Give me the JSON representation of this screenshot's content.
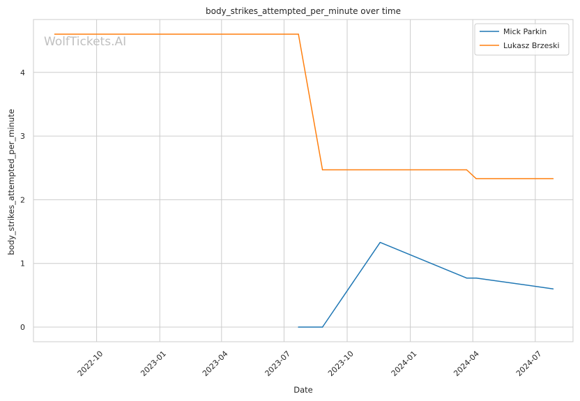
{
  "chart_data": {
    "type": "line",
    "title": "body_strikes_attempted_per_minute over time",
    "xlabel": "Date",
    "ylabel": "body_strikes_attempted_per_minute",
    "watermark": "WolfTickets.AI",
    "x_ticks": [
      "2022-10",
      "2023-01",
      "2023-04",
      "2023-07",
      "2023-10",
      "2024-01",
      "2024-04",
      "2024-07"
    ],
    "y_ticks": [
      0,
      1,
      2,
      3,
      4
    ],
    "xlim": [
      "2022-07-01",
      "2024-08-25"
    ],
    "ylim": [
      -0.23,
      4.83
    ],
    "grid": true,
    "legend_position": "top-right",
    "series": [
      {
        "name": "Mick Parkin",
        "color": "#1f77b4",
        "points": [
          {
            "x": "2023-07-22",
            "y": 0
          },
          {
            "x": "2023-08-26",
            "y": 0
          },
          {
            "x": "2023-11-18",
            "y": 1.33
          },
          {
            "x": "2024-03-23",
            "y": 0.77
          },
          {
            "x": "2024-04-06",
            "y": 0.77
          },
          {
            "x": "2024-07-27",
            "y": 0.6
          }
        ]
      },
      {
        "name": "Lukasz Brzeski",
        "color": "#ff7f0e",
        "points": [
          {
            "x": "2022-08-01",
            "y": 4.6
          },
          {
            "x": "2023-07-22",
            "y": 4.6
          },
          {
            "x": "2023-08-26",
            "y": 2.47
          },
          {
            "x": "2024-03-23",
            "y": 2.47
          },
          {
            "x": "2024-04-06",
            "y": 2.33
          },
          {
            "x": "2024-07-27",
            "y": 2.33
          }
        ]
      }
    ]
  }
}
